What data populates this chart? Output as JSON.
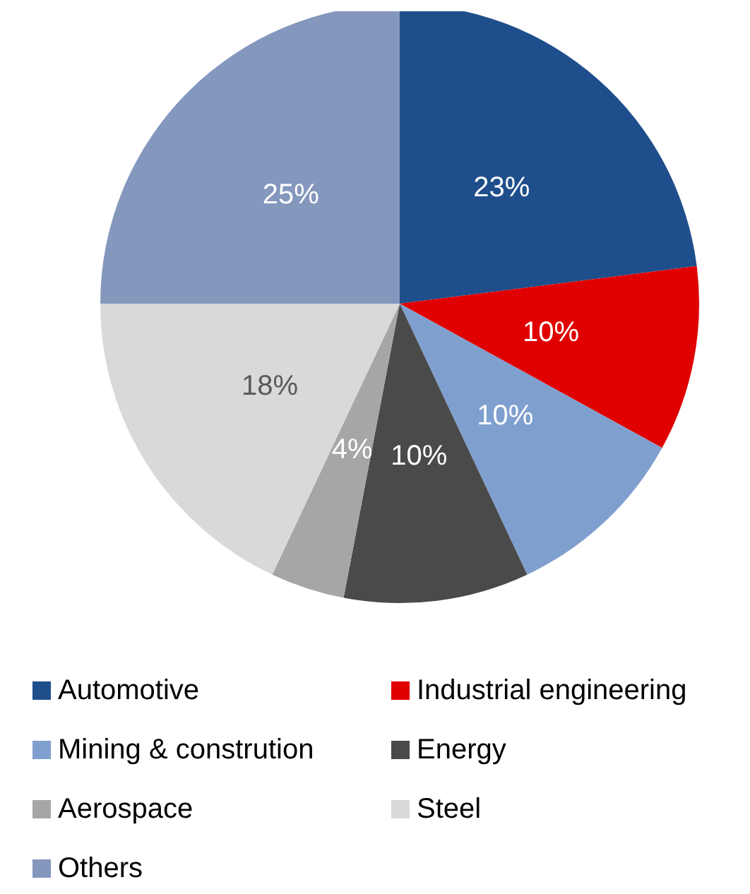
{
  "chart_data": {
    "type": "pie",
    "categories": [
      "Automotive",
      "Industrial engineering",
      "Mining & constrution",
      "Energy",
      "Aerospace",
      "Steel",
      "Others"
    ],
    "values": [
      23,
      10,
      10,
      10,
      4,
      18,
      25
    ],
    "colors": [
      "#1f4e8c",
      "#e00000",
      "#7f9fcf",
      "#4a4a4a",
      "#a6a6a6",
      "#d9d9d9",
      "#8497bd"
    ],
    "value_labels": [
      "23%",
      "10%",
      "10%",
      "10%",
      "4%",
      "18%",
      "25%"
    ],
    "legend": "bottom"
  }
}
